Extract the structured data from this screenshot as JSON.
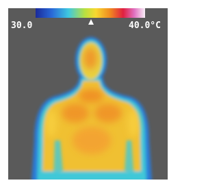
{
  "scale": {
    "min_label": "30.0",
    "max_label": "40.0°C"
  }
}
